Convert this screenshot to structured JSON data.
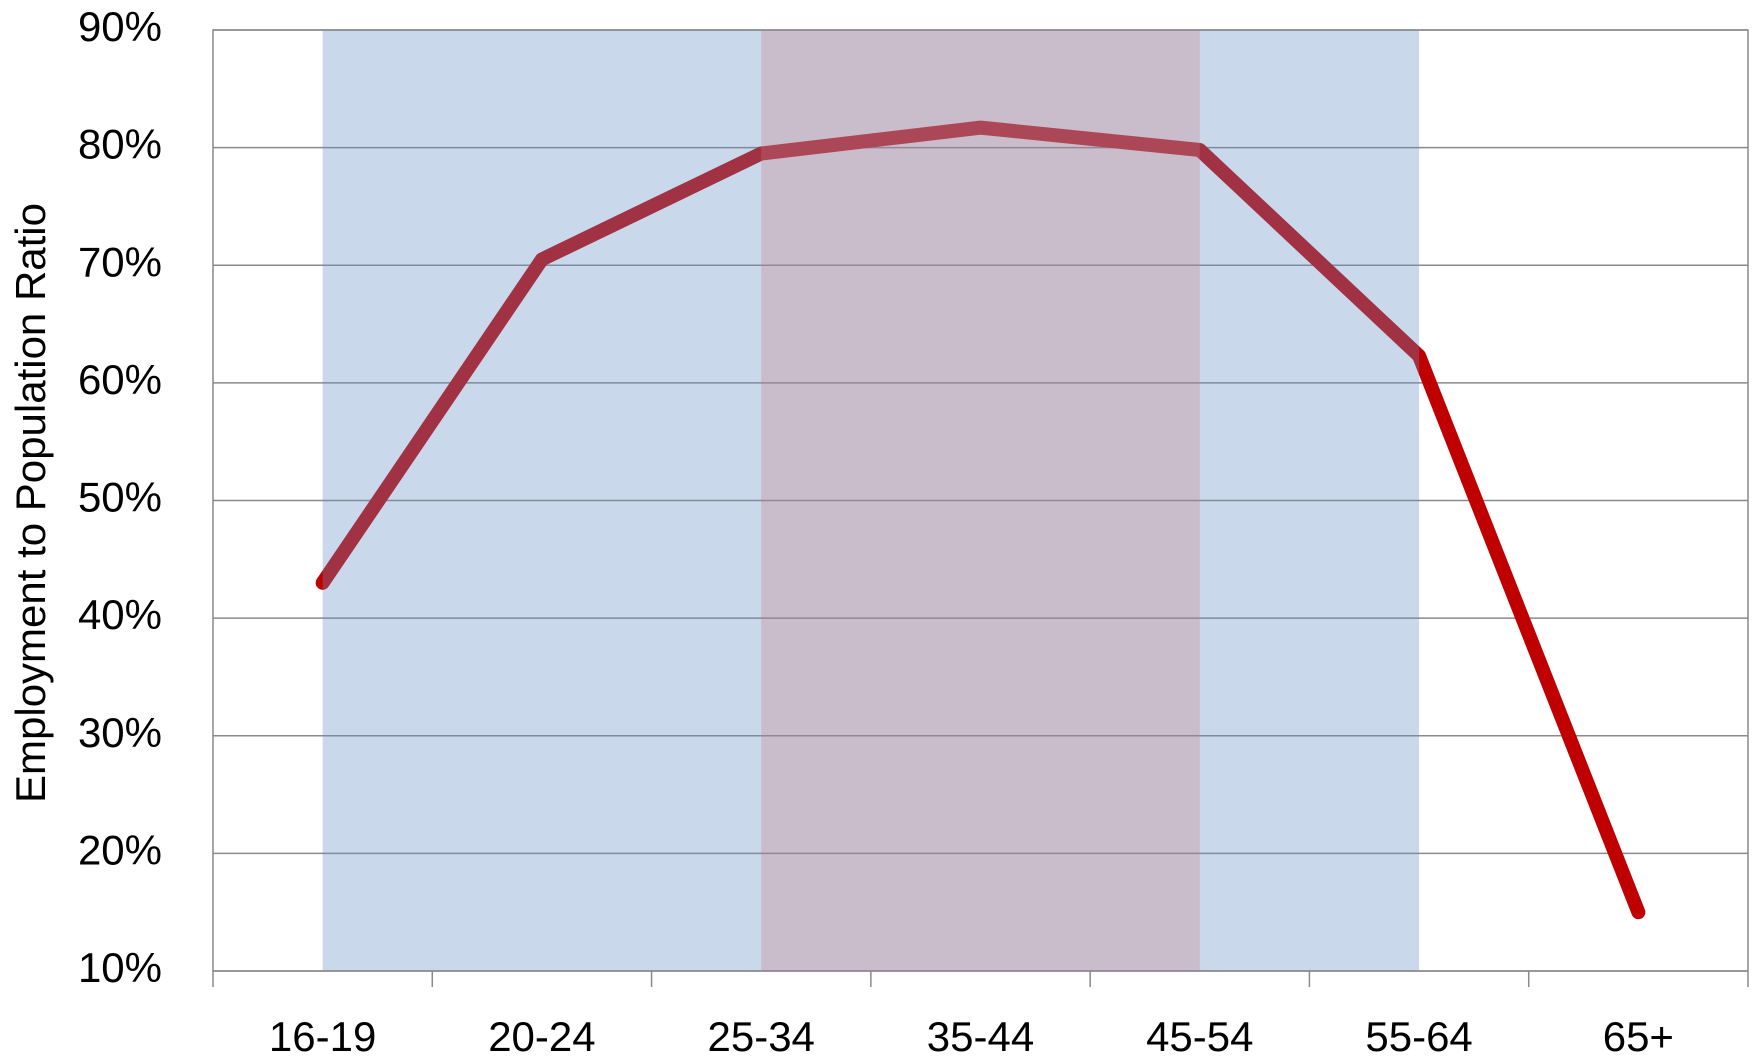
{
  "chart_data": {
    "type": "line",
    "y_label": "Employment to Population Ratio",
    "categories": [
      "16-19",
      "20-24",
      "25-34",
      "35-44",
      "45-54",
      "55-64",
      "65+"
    ],
    "values": [
      43,
      70.5,
      79.5,
      81.7,
      79.8,
      62.3,
      15
    ],
    "color": "#c00000",
    "ylim": [
      10,
      90
    ],
    "yticks": [
      {
        "value": 10,
        "label": "10%"
      },
      {
        "value": 20,
        "label": "20%"
      },
      {
        "value": 30,
        "label": "30%"
      },
      {
        "value": 40,
        "label": "40%"
      },
      {
        "value": 50,
        "label": "50%"
      },
      {
        "value": 60,
        "label": "60%"
      },
      {
        "value": 70,
        "label": "70%"
      },
      {
        "value": 80,
        "label": "80%"
      },
      {
        "value": 90,
        "label": "90%"
      }
    ],
    "grid": true
  }
}
